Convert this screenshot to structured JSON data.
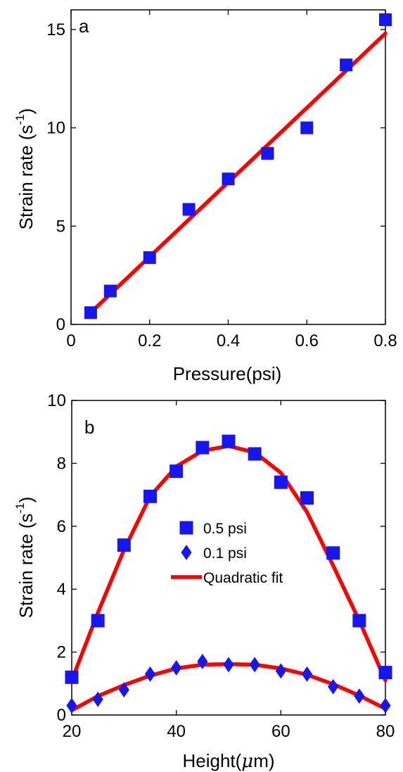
{
  "colors": {
    "marker": "#1616f0",
    "fit": "#ff0000",
    "axis": "#000000"
  },
  "chart_data": [
    {
      "type": "scatter",
      "panel_label": "a",
      "xlabel": "Pressure(psi)",
      "ylabel": "Strain rate (s",
      "ylabel_sup": "-1",
      "ylabel_close": ")",
      "xlim": [
        0,
        0.8
      ],
      "ylim": [
        0,
        16
      ],
      "xticks": [
        0,
        0.2,
        0.4,
        0.6,
        0.8
      ],
      "xtick_labels": [
        "0",
        "0.2",
        "0.4",
        "0.6",
        "0.8"
      ],
      "yticks": [
        0,
        5,
        10,
        15
      ],
      "ytick_labels": [
        "0",
        "5",
        "10",
        "15"
      ],
      "grid": false,
      "series": [
        {
          "marker": "square",
          "x": [
            0.05,
            0.1,
            0.2,
            0.3,
            0.4,
            0.5,
            0.6,
            0.7,
            0.8
          ],
          "y": [
            0.6,
            1.7,
            3.4,
            5.85,
            7.4,
            8.7,
            10.0,
            13.2,
            15.5
          ]
        },
        {
          "marker": "line",
          "x": [
            0.05,
            0.8
          ],
          "y": [
            0.6,
            14.8
          ]
        }
      ]
    },
    {
      "type": "scatter",
      "panel_label": "b",
      "xlabel": "Height(",
      "xlabel_mu": "μ",
      "xlabel_close": "m)",
      "ylabel": "Strain rate (s",
      "ylabel_sup": "-1",
      "ylabel_close": ")",
      "xlim": [
        20,
        80
      ],
      "ylim": [
        0,
        10
      ],
      "xticks": [
        20,
        40,
        60,
        80
      ],
      "xtick_labels": [
        "20",
        "40",
        "60",
        "80"
      ],
      "yticks": [
        0,
        2,
        4,
        6,
        8,
        10
      ],
      "ytick_labels": [
        "0",
        "2",
        "4",
        "6",
        "8",
        "10"
      ],
      "grid": false,
      "legend": {
        "position": "center"
      },
      "series": [
        {
          "name": "0.5 psi",
          "marker": "square",
          "x": [
            20,
            25,
            30,
            35,
            40,
            45,
            50,
            55,
            60,
            65,
            70,
            75,
            80
          ],
          "y": [
            1.2,
            3.0,
            5.4,
            6.95,
            7.75,
            8.5,
            8.7,
            8.3,
            7.4,
            6.9,
            5.15,
            3.0,
            1.35
          ]
        },
        {
          "name": "0.1 psi",
          "marker": "diamond",
          "x": [
            20,
            25,
            30,
            35,
            40,
            45,
            50,
            55,
            60,
            65,
            70,
            75,
            80
          ],
          "y": [
            0.3,
            0.5,
            0.8,
            1.3,
            1.5,
            1.7,
            1.6,
            1.6,
            1.4,
            1.3,
            0.9,
            0.6,
            0.3
          ]
        },
        {
          "name": "Quadratic fit",
          "marker": "line",
          "x": [
            20,
            25,
            30,
            35,
            40,
            45,
            50,
            55,
            60,
            65,
            70,
            75,
            80
          ],
          "y": [
            1.1,
            3.25,
            5.25,
            6.95,
            7.9,
            8.4,
            8.55,
            8.35,
            7.7,
            6.45,
            4.75,
            3.0,
            1.1
          ]
        },
        {
          "name": "",
          "marker": "line",
          "x": [
            20,
            25,
            30,
            35,
            40,
            45,
            50,
            55,
            60,
            65,
            70,
            75,
            80
          ],
          "y": [
            0.15,
            0.6,
            0.95,
            1.25,
            1.48,
            1.6,
            1.62,
            1.6,
            1.48,
            1.28,
            0.98,
            0.62,
            0.2
          ]
        }
      ]
    }
  ]
}
